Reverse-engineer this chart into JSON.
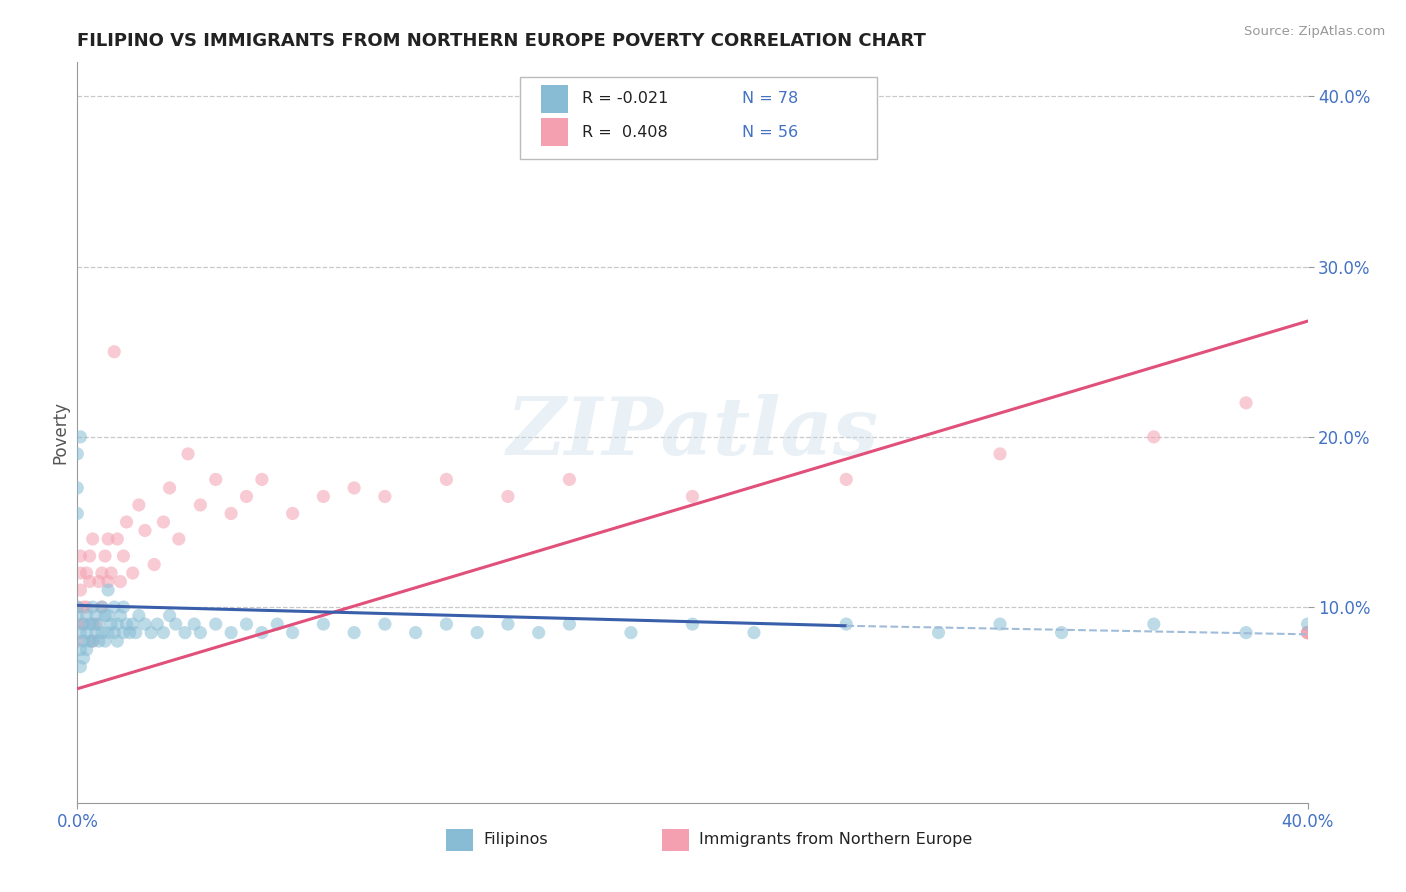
{
  "title": "FILIPINO VS IMMIGRANTS FROM NORTHERN EUROPE POVERTY CORRELATION CHART",
  "source": "Source: ZipAtlas.com",
  "ylabel": "Poverty",
  "xlim": [
    0.0,
    0.4
  ],
  "ylim": [
    -0.015,
    0.42
  ],
  "y_ticks": [
    0.1,
    0.2,
    0.3,
    0.4
  ],
  "y_tick_labels": [
    "10.0%",
    "20.0%",
    "30.0%",
    "40.0%"
  ],
  "x_ticks": [
    0.0,
    0.4
  ],
  "x_tick_labels": [
    "0.0%",
    "40.0%"
  ],
  "grid_color": "#c8c8c8",
  "background_color": "#ffffff",
  "watermark": "ZIPatlas",
  "color_blue": "#87bcd4",
  "color_pink": "#f4a0b0",
  "color_blue_line_solid": "#3a5faa",
  "color_blue_line_dash": "#a0bcd8",
  "color_pink_line": "#e0507a",
  "color_text_blue": "#4472c4",
  "scatter_alpha": 0.55,
  "scatter_size": 90,
  "blue_line_solid_end": 0.25,
  "blue_line_start_y": 0.101,
  "blue_line_end_y": 0.089,
  "blue_line_dash_end_y": 0.084,
  "pink_line_start_y": 0.052,
  "pink_line_end_y": 0.268,
  "filipinos_x": [
    0.0,
    0.0,
    0.001,
    0.001,
    0.001,
    0.002,
    0.002,
    0.002,
    0.003,
    0.003,
    0.003,
    0.004,
    0.004,
    0.005,
    0.005,
    0.005,
    0.006,
    0.006,
    0.007,
    0.007,
    0.008,
    0.008,
    0.009,
    0.009,
    0.01,
    0.01,
    0.01,
    0.011,
    0.012,
    0.012,
    0.013,
    0.013,
    0.014,
    0.015,
    0.015,
    0.016,
    0.017,
    0.018,
    0.019,
    0.02,
    0.022,
    0.024,
    0.026,
    0.028,
    0.03,
    0.032,
    0.035,
    0.038,
    0.04,
    0.045,
    0.05,
    0.055,
    0.06,
    0.065,
    0.07,
    0.08,
    0.09,
    0.1,
    0.11,
    0.12,
    0.13,
    0.14,
    0.15,
    0.16,
    0.18,
    0.2,
    0.22,
    0.25,
    0.28,
    0.3,
    0.32,
    0.35,
    0.38,
    0.4,
    0.0,
    0.0,
    0.0,
    0.001
  ],
  "filipinos_y": [
    0.1,
    0.095,
    0.085,
    0.075,
    0.065,
    0.09,
    0.08,
    0.07,
    0.095,
    0.085,
    0.075,
    0.09,
    0.08,
    0.1,
    0.09,
    0.08,
    0.095,
    0.085,
    0.09,
    0.08,
    0.1,
    0.085,
    0.095,
    0.08,
    0.11,
    0.095,
    0.085,
    0.09,
    0.1,
    0.085,
    0.09,
    0.08,
    0.095,
    0.1,
    0.085,
    0.09,
    0.085,
    0.09,
    0.085,
    0.095,
    0.09,
    0.085,
    0.09,
    0.085,
    0.095,
    0.09,
    0.085,
    0.09,
    0.085,
    0.09,
    0.085,
    0.09,
    0.085,
    0.09,
    0.085,
    0.09,
    0.085,
    0.09,
    0.085,
    0.09,
    0.085,
    0.09,
    0.085,
    0.09,
    0.085,
    0.09,
    0.085,
    0.09,
    0.085,
    0.09,
    0.085,
    0.09,
    0.085,
    0.09,
    0.155,
    0.19,
    0.17,
    0.2
  ],
  "northern_europe_x": [
    0.0,
    0.0,
    0.0,
    0.001,
    0.001,
    0.001,
    0.002,
    0.002,
    0.003,
    0.003,
    0.004,
    0.004,
    0.005,
    0.005,
    0.006,
    0.007,
    0.008,
    0.008,
    0.009,
    0.01,
    0.01,
    0.011,
    0.012,
    0.013,
    0.014,
    0.015,
    0.016,
    0.018,
    0.02,
    0.022,
    0.025,
    0.028,
    0.03,
    0.033,
    0.036,
    0.04,
    0.045,
    0.05,
    0.055,
    0.06,
    0.07,
    0.08,
    0.09,
    0.1,
    0.12,
    0.14,
    0.16,
    0.2,
    0.25,
    0.3,
    0.35,
    0.38,
    0.4,
    0.4,
    0.4,
    0.4
  ],
  "northern_europe_y": [
    0.09,
    0.1,
    0.08,
    0.13,
    0.12,
    0.11,
    0.09,
    0.1,
    0.12,
    0.1,
    0.13,
    0.115,
    0.08,
    0.14,
    0.09,
    0.115,
    0.1,
    0.12,
    0.13,
    0.115,
    0.14,
    0.12,
    0.25,
    0.14,
    0.115,
    0.13,
    0.15,
    0.12,
    0.16,
    0.145,
    0.125,
    0.15,
    0.17,
    0.14,
    0.19,
    0.16,
    0.175,
    0.155,
    0.165,
    0.175,
    0.155,
    0.165,
    0.17,
    0.165,
    0.175,
    0.165,
    0.175,
    0.165,
    0.175,
    0.19,
    0.2,
    0.22,
    0.085,
    0.085,
    0.085,
    0.085
  ]
}
